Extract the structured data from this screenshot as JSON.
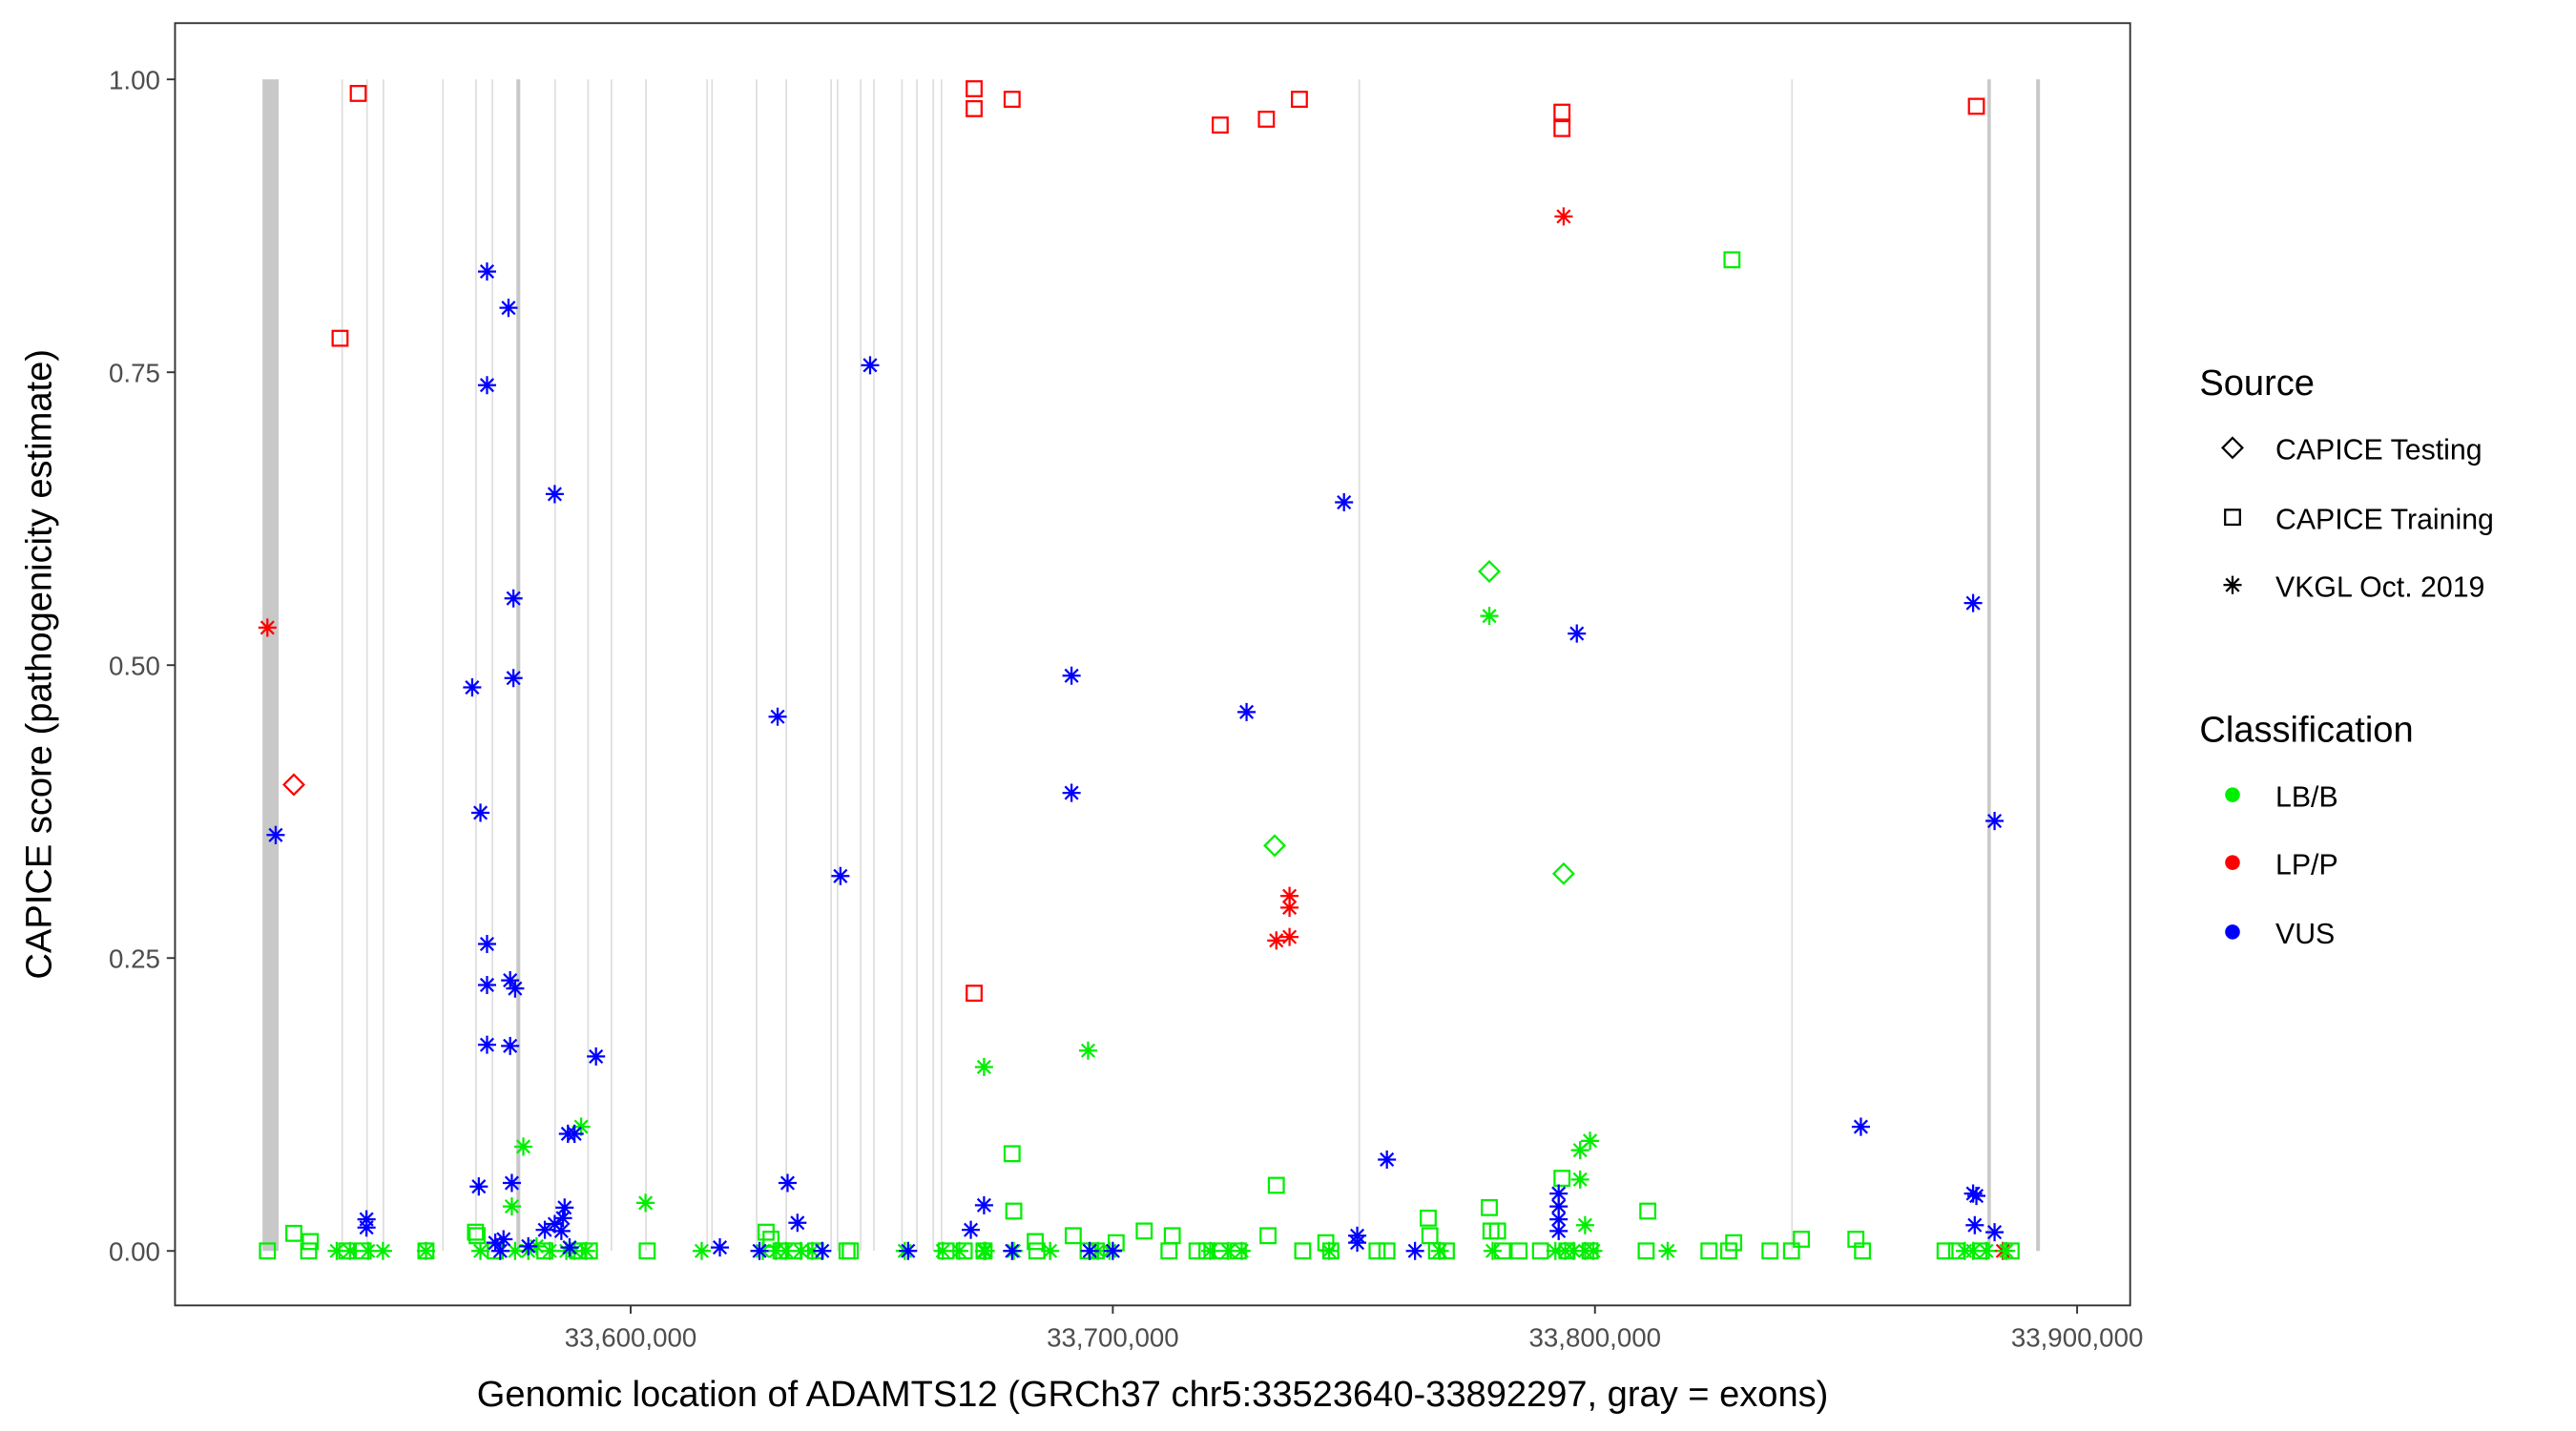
{
  "chart_data": {
    "type": "scatter",
    "xlabel": "Genomic location of ADAMTS12 (GRCh37 chr5:33523640-33892297, gray = exons)",
    "ylabel": "CAPICE score (pathogenicity estimate)",
    "xlim": [
      33505500,
      33911000
    ],
    "ylim": [
      -0.0465,
      1.048
    ],
    "grid": false,
    "x_ticks": [
      {
        "value": 33600000,
        "label": "33,600,000"
      },
      {
        "value": 33700000,
        "label": "33,700,000"
      },
      {
        "value": 33800000,
        "label": "33,800,000"
      },
      {
        "value": 33900000,
        "label": "33,900,000"
      }
    ],
    "y_ticks": [
      {
        "value": 0,
        "label": "0.00"
      },
      {
        "value": 0.25,
        "label": "0.25"
      },
      {
        "value": 0.5,
        "label": "0.50"
      },
      {
        "value": 0.75,
        "label": "0.75"
      },
      {
        "value": 1,
        "label": "1.00"
      }
    ],
    "exons": [
      [
        33523640,
        33527000
      ],
      [
        33540000,
        33540150
      ],
      [
        33545150,
        33545300
      ],
      [
        33548550,
        33548700
      ],
      [
        33560900,
        33561050
      ],
      [
        33567750,
        33567900
      ],
      [
        33571150,
        33571300
      ],
      [
        33576300,
        33577100
      ],
      [
        33584150,
        33584300
      ],
      [
        33591000,
        33591150
      ],
      [
        33595850,
        33596000
      ],
      [
        33603000,
        33603150
      ],
      [
        33615700,
        33615850
      ],
      [
        33616700,
        33616850
      ],
      [
        33625950,
        33626100
      ],
      [
        33632100,
        33632250
      ],
      [
        33641400,
        33641550
      ],
      [
        33642750,
        33642900
      ],
      [
        33647550,
        33647700
      ],
      [
        33650300,
        33650450
      ],
      [
        33656100,
        33656250
      ],
      [
        33659200,
        33659350
      ],
      [
        33662600,
        33662750
      ],
      [
        33664300,
        33664450
      ],
      [
        33750950,
        33751100
      ],
      [
        33840700,
        33840850
      ],
      [
        33881400,
        33882100
      ],
      [
        33891500,
        33892297
      ]
    ],
    "legend": {
      "placement": "right",
      "source_title": "Source",
      "source_entries": [
        {
          "label": "CAPICE Testing",
          "shape": "diamond"
        },
        {
          "label": "CAPICE Training",
          "shape": "square"
        },
        {
          "label": "VKGL Oct. 2019",
          "shape": "asterisk"
        }
      ],
      "class_title": "Classification",
      "class_entries": [
        {
          "label": "LB/B",
          "color": "#00ee00"
        },
        {
          "label": "LP/P",
          "color": "#ff0000"
        },
        {
          "label": "VUS",
          "color": "#0000ff"
        }
      ]
    },
    "series": [
      {
        "source": "CAPICE Training",
        "shape": "square",
        "class": "LP/P",
        "color": "#ff0000",
        "points": [
          [
            33543500,
            0.988
          ],
          [
            33539730,
            0.779
          ],
          [
            33671240,
            0.992
          ],
          [
            33671240,
            0.975
          ],
          [
            33679110,
            0.983
          ],
          [
            33722270,
            0.961
          ],
          [
            33731850,
            0.966
          ],
          [
            33738700,
            0.983
          ],
          [
            33793160,
            0.972
          ],
          [
            33793160,
            0.958
          ],
          [
            33879110,
            0.977
          ],
          [
            33671240,
            0.22
          ]
        ]
      },
      {
        "source": "CAPICE Testing",
        "shape": "diamond",
        "class": "LP/P",
        "color": "#ff0000",
        "points": [
          [
            33530140,
            0.398
          ]
        ]
      },
      {
        "source": "VKGL Oct. 2019",
        "shape": "asterisk",
        "class": "LP/P",
        "color": "#ff0000",
        "points": [
          [
            33524660,
            0.532
          ],
          [
            33793500,
            0.883
          ],
          [
            33736650,
            0.303
          ],
          [
            33736650,
            0.293
          ],
          [
            33733910,
            0.265
          ],
          [
            33736650,
            0.268
          ],
          [
            33884600,
            0.0
          ]
        ]
      },
      {
        "source": "CAPICE Testing",
        "shape": "diamond",
        "class": "LB/B",
        "color": "#00ee00",
        "points": [
          [
            33778090,
            0.58
          ],
          [
            33733570,
            0.346
          ],
          [
            33793500,
            0.322
          ]
        ]
      },
      {
        "source": "CAPICE Training",
        "shape": "square",
        "class": "LB/B",
        "color": "#00ee00",
        "points": [
          [
            33828420,
            0.846
          ],
          [
            33679110,
            0.083
          ],
          [
            33733910,
            0.056
          ],
          [
            33679460,
            0.034
          ],
          [
            33793160,
            0.062
          ],
          [
            33778090,
            0.037
          ],
          [
            33810960,
            0.034
          ],
          [
            33765420,
            0.028
          ],
          [
            33524660,
            0
          ],
          [
            33530140,
            0.015
          ],
          [
            33533560,
            0.008
          ],
          [
            33533220,
            0
          ],
          [
            33541100,
            0
          ],
          [
            33544520,
            0
          ],
          [
            33557540,
            0
          ],
          [
            33567810,
            0.016
          ],
          [
            33568150,
            0.013
          ],
          [
            33571920,
            0
          ],
          [
            33582200,
            0
          ],
          [
            33589040,
            0
          ],
          [
            33591440,
            0
          ],
          [
            33603430,
            0
          ],
          [
            33628090,
            0.016
          ],
          [
            33629110,
            0.01
          ],
          [
            33631170,
            0
          ],
          [
            33633910,
            0
          ],
          [
            33638360,
            0
          ],
          [
            33644870,
            0
          ],
          [
            33645550,
            0
          ],
          [
            33665410,
            0
          ],
          [
            33669180,
            0
          ],
          [
            33673290,
            0
          ],
          [
            33683910,
            0.008
          ],
          [
            33684250,
            0
          ],
          [
            33691790,
            0.013
          ],
          [
            33694870,
            0
          ],
          [
            33696580,
            0
          ],
          [
            33700690,
            0.007
          ],
          [
            33706510,
            0.017
          ],
          [
            33711650,
            0
          ],
          [
            33712330,
            0.013
          ],
          [
            33717470,
            0
          ],
          [
            33719520,
            0
          ],
          [
            33722270,
            0
          ],
          [
            33726030,
            0
          ],
          [
            33732200,
            0.013
          ],
          [
            33739390,
            0
          ],
          [
            33744180,
            0.007
          ],
          [
            33745210,
            0
          ],
          [
            33754800,
            0
          ],
          [
            33756850,
            0
          ],
          [
            33765760,
            0.013
          ],
          [
            33767130,
            0
          ],
          [
            33769180,
            0
          ],
          [
            33778430,
            0.017
          ],
          [
            33779800,
            0.017
          ],
          [
            33780830,
            0
          ],
          [
            33784250,
            0
          ],
          [
            33788700,
            0
          ],
          [
            33794180,
            0
          ],
          [
            33798980,
            0
          ],
          [
            33810620,
            0
          ],
          [
            33823640,
            0
          ],
          [
            33827740,
            0
          ],
          [
            33828770,
            0.007
          ],
          [
            33836310,
            0
          ],
          [
            33840760,
            0
          ],
          [
            33842810,
            0.01
          ],
          [
            33854120,
            0.01
          ],
          [
            33855490,
            0
          ],
          [
            33872610,
            0
          ],
          [
            33875010,
            0
          ],
          [
            33880140,
            0
          ],
          [
            33886310,
            0
          ]
        ]
      },
      {
        "source": "VKGL Oct. 2019",
        "shape": "asterisk",
        "class": "LB/B",
        "color": "#00ee00",
        "points": [
          [
            33778090,
            0.542
          ],
          [
            33694870,
            0.171
          ],
          [
            33673290,
            0.157
          ],
          [
            33577740,
            0.089
          ],
          [
            33589730,
            0.106
          ],
          [
            33603080,
            0.041
          ],
          [
            33798980,
            0.094
          ],
          [
            33796920,
            0.086
          ],
          [
            33796920,
            0.061
          ],
          [
            33575350,
            0.038
          ],
          [
            33797950,
            0.022
          ],
          [
            33539040,
            0
          ],
          [
            33541780,
            0
          ],
          [
            33545550,
            0
          ],
          [
            33548630,
            0
          ],
          [
            33557540,
            0
          ],
          [
            33568840,
            0
          ],
          [
            33576030,
            0
          ],
          [
            33578770,
            0
          ],
          [
            33580480,
            0.004
          ],
          [
            33583220,
            0
          ],
          [
            33586650,
            0
          ],
          [
            33588360,
            0
          ],
          [
            33590760,
            0
          ],
          [
            33614730,
            0
          ],
          [
            33627400,
            0
          ],
          [
            33630140,
            0
          ],
          [
            33632200,
            0
          ],
          [
            33635280,
            0
          ],
          [
            33637670,
            0
          ],
          [
            33656850,
            0
          ],
          [
            33664730,
            0
          ],
          [
            33668150,
            0
          ],
          [
            33673290,
            0
          ],
          [
            33673630,
            0
          ],
          [
            33679460,
            0
          ],
          [
            33686990,
            0
          ],
          [
            33696920,
            0
          ],
          [
            33699320,
            0
          ],
          [
            33720210,
            0
          ],
          [
            33723980,
            0
          ],
          [
            33726720,
            0
          ],
          [
            33744870,
            0
          ],
          [
            33767810,
            0
          ],
          [
            33778770,
            0
          ],
          [
            33791790,
            0
          ],
          [
            33793840,
            0
          ],
          [
            33795550,
            0
          ],
          [
            33797950,
            0
          ],
          [
            33799660,
            0
          ],
          [
            33815070,
            0
          ],
          [
            33876720,
            0
          ],
          [
            33878430,
            0
          ],
          [
            33881170,
            0
          ],
          [
            33885280,
            0
          ]
        ]
      },
      {
        "source": "VKGL Oct. 2019",
        "shape": "asterisk",
        "class": "VUS",
        "color": "#0000ff",
        "points": [
          [
            33526370,
            0.355
          ],
          [
            33570210,
            0.836
          ],
          [
            33574660,
            0.805
          ],
          [
            33570210,
            0.739
          ],
          [
            33584250,
            0.646
          ],
          [
            33575690,
            0.557
          ],
          [
            33575690,
            0.489
          ],
          [
            33567130,
            0.481
          ],
          [
            33568840,
            0.374
          ],
          [
            33570210,
            0.262
          ],
          [
            33570210,
            0.227
          ],
          [
            33575000,
            0.231
          ],
          [
            33576030,
            0.224
          ],
          [
            33570210,
            0.176
          ],
          [
            33575000,
            0.175
          ],
          [
            33592810,
            0.166
          ],
          [
            33649660,
            0.756
          ],
          [
            33630480,
            0.456
          ],
          [
            33643500,
            0.32
          ],
          [
            33691440,
            0.491
          ],
          [
            33691440,
            0.391
          ],
          [
            33727740,
            0.46
          ],
          [
            33747950,
            0.639
          ],
          [
            33796240,
            0.527
          ],
          [
            33878430,
            0.553
          ],
          [
            33882880,
            0.367
          ],
          [
            33756850,
            0.078
          ],
          [
            33855150,
            0.106
          ],
          [
            33632540,
            0.058
          ],
          [
            33568500,
            0.055
          ],
          [
            33575350,
            0.058
          ],
          [
            33586990,
            0.1
          ],
          [
            33588360,
            0.1
          ],
          [
            33545210,
            0.027
          ],
          [
            33545210,
            0.02
          ],
          [
            33673290,
            0.039
          ],
          [
            33670550,
            0.018
          ],
          [
            33634590,
            0.024
          ],
          [
            33878430,
            0.049
          ],
          [
            33879110,
            0.047
          ],
          [
            33878770,
            0.022
          ],
          [
            33882880,
            0.016
          ],
          [
            33792470,
            0.049
          ],
          [
            33792470,
            0.038
          ],
          [
            33792470,
            0.027
          ],
          [
            33792470,
            0.017
          ],
          [
            33586300,
            0.037
          ],
          [
            33585960,
            0.028
          ],
          [
            33584250,
            0.023
          ],
          [
            33582200,
            0.018
          ],
          [
            33585620,
            0.017
          ],
          [
            33573630,
            0.01
          ],
          [
            33571920,
            0.007
          ],
          [
            33750690,
            0.013
          ],
          [
            33750690,
            0.007
          ],
          [
            33618500,
            0.003
          ],
          [
            33626720,
            0
          ],
          [
            33639730,
            0
          ],
          [
            33657540,
            0
          ],
          [
            33679110,
            0
          ],
          [
            33695210,
            0
          ],
          [
            33700000,
            0
          ],
          [
            33762680,
            0
          ],
          [
            33572950,
            0
          ],
          [
            33578770,
            0.004
          ],
          [
            33587330,
            0.003
          ]
        ]
      }
    ]
  }
}
